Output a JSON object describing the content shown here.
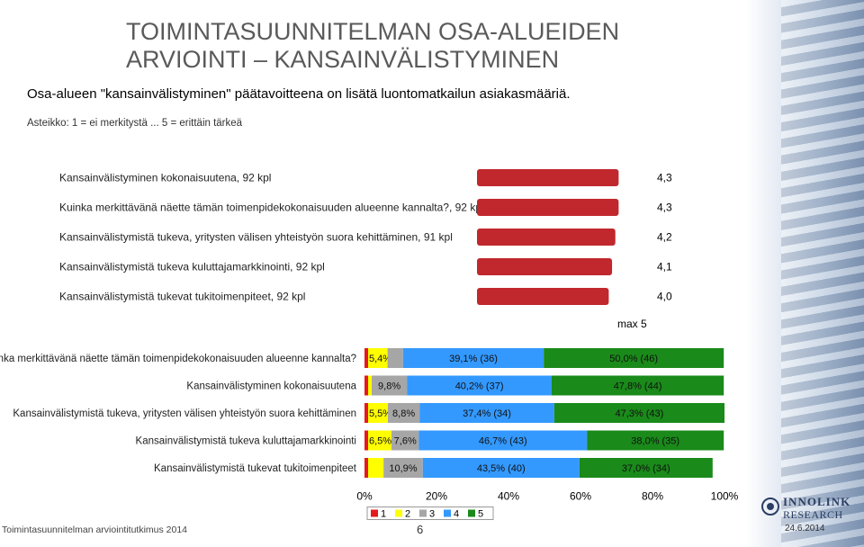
{
  "title": "TOIMINTASUUNNITELMAN OSA-ALUEIDEN ARVIOINTI – KANSAINVÄLISTYMINEN",
  "subtitle": "Osa-alueen \"kansainvälistyminen\" päätavoitteena on lisätä luontomatkailun asiakasmääriä.",
  "scale_note": "Asteikko: 1 = ei merkitystä ... 5 = erittäin tärkeä",
  "footer": {
    "left": "Toimintasuunnitelman arviointitutkimus 2014",
    "page": "6",
    "date": "24.6.2014",
    "logo_name": "INNOLINK",
    "logo_sub": "RESEARCH"
  },
  "colors": {
    "mean_bar": "#c0282e",
    "c1": "#e41a1c",
    "c2": "#ffff00",
    "c3": "#a6a6a6",
    "c4": "#3399ff",
    "c5": "#1a8a1a"
  },
  "chart_data": [
    {
      "type": "bar",
      "orientation": "horizontal",
      "categories": [
        "Kansainvälistyminen kokonaisuutena, 92 kpl",
        "Kuinka merkittävänä näette tämän toimenpidekokonaisuuden alueenne kannalta?, 92 kpl",
        "Kansainvälistymistä tukeva, yritysten välisen yhteistyön suora kehittäminen, 91 kpl",
        "Kansainvälistymistä tukeva kuluttajamarkkinointi, 92 kpl",
        "Kansainvälistymistä tukevat tukitoimenpiteet, 92 kpl"
      ],
      "values": [
        4.3,
        4.3,
        4.2,
        4.1,
        4.0
      ],
      "value_labels": [
        "4,3",
        "4,3",
        "4,2",
        "4,1",
        "4,0"
      ],
      "xlim": [
        0,
        5
      ],
      "max_label": "max 5"
    },
    {
      "type": "bar",
      "stacked": true,
      "orientation": "horizontal",
      "categories": [
        "Kuinka merkittävänä näette tämän toimenpidekokonaisuuden alueenne kannalta?",
        "Kansainvälistyminen kokonaisuutena",
        "Kansainvälistymistä tukeva, yritysten välisen yhteistyön suora kehittäminen",
        "Kansainvälistymistä tukeva kuluttajamarkkinointi",
        "Kansainvälistymistä tukevat tukitoimenpiteet"
      ],
      "series": [
        {
          "name": "1",
          "values": [
            1.0,
            1.0,
            1.0,
            1.0,
            1.0
          ]
        },
        {
          "name": "2",
          "values": [
            5.4,
            1.0,
            5.5,
            6.5,
            4.3
          ]
        },
        {
          "name": "3",
          "values": [
            4.3,
            9.8,
            8.8,
            7.6,
            10.9
          ]
        },
        {
          "name": "4",
          "values": [
            39.1,
            40.2,
            37.4,
            46.7,
            43.5
          ]
        },
        {
          "name": "5",
          "values": [
            50.0,
            47.8,
            47.3,
            38.0,
            37.0
          ]
        }
      ],
      "segment_labels": [
        [
          "",
          "5,4%",
          "",
          "39,1% (36)",
          "50,0% (46)"
        ],
        [
          "",
          "",
          "9,8%",
          "40,2% (37)",
          "47,8% (44)"
        ],
        [
          "",
          "5,5%",
          "8,8%",
          "37,4% (34)",
          "47,3% (43)"
        ],
        [
          "",
          "6,5%",
          "7,6%",
          "46,7% (43)",
          "38,0% (35)"
        ],
        [
          "",
          "",
          "10,9%",
          "43,5% (40)",
          "37,0% (34)"
        ]
      ],
      "x_ticks": [
        "0%",
        "20%",
        "40%",
        "60%",
        "80%",
        "100%"
      ],
      "xlim": [
        0,
        100
      ],
      "legend": [
        "1",
        "2",
        "3",
        "4",
        "5"
      ],
      "legend_position": "bottom"
    }
  ]
}
